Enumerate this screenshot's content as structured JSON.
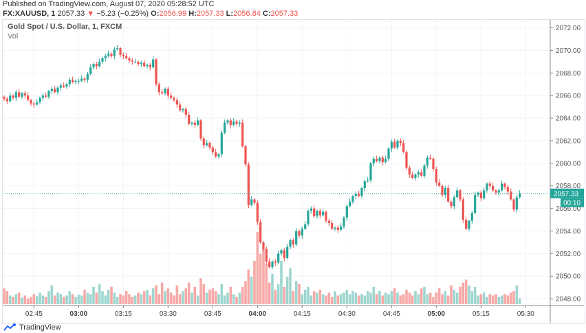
{
  "header": {
    "published": "Published on TradingView.com, August 07, 2020 05:28:52 UTC",
    "symbol": "FX:XAUUSD, 1",
    "last": "2057.33",
    "change": "−5.23 (−0.25%)",
    "o_label": "O:",
    "o": "2056.99",
    "h_label": "H:",
    "h": "2057.33",
    "l_label": "L:",
    "l": "2056.84",
    "c_label": "C:",
    "c": "2057.33",
    "direction_icon": "triangle-down-icon"
  },
  "pane": {
    "title": "Gold Spot / U.S. Dollar, 1, FXCM",
    "volume_label": "Vol"
  },
  "footer": {
    "brand": "TradingView",
    "logo_icon": "tradingview-logo-icon"
  },
  "colors": {
    "up": "#26a69a",
    "down": "#ef5350",
    "up_volume": "#9fd6d0",
    "down_volume": "#f6a9a7",
    "grid": "#f0f3fa"
  },
  "chart_data": {
    "type": "candlestick",
    "interval": "1 minute",
    "start_time": "02:35",
    "end_time": "05:28",
    "ylim": [
      2047.4,
      2072.7
    ],
    "y_ticks": [
      "2048.00",
      "2050.00",
      "2052.00",
      "2054.00",
      "2056.00",
      "2058.00",
      "2060.00",
      "2062.00",
      "2064.00",
      "2066.00",
      "2068.00",
      "2070.00",
      "2072.00"
    ],
    "x_ticks": [
      "02:45",
      "03:00",
      "03:15",
      "03:30",
      "03:45",
      "04:00",
      "04:15",
      "04:30",
      "04:45",
      "05:00",
      "05:15",
      "05:30"
    ],
    "x_ticks_bold": [
      "03:00",
      "04:00",
      "05:00"
    ],
    "last_price_label": "2057.33",
    "countdown_label": "00:10",
    "first_open": 2065.9,
    "closes": [
      2065.7,
      2065.5,
      2066.0,
      2065.8,
      2066.3,
      2065.9,
      2066.2,
      2066.0,
      2065.6,
      2065.3,
      2065.2,
      2065.4,
      2065.8,
      2066.0,
      2065.9,
      2066.4,
      2066.6,
      2066.3,
      2066.7,
      2066.9,
      2066.8,
      2067.0,
      2067.4,
      2067.2,
      2067.3,
      2067.3,
      2067.5,
      2067.4,
      2067.9,
      2068.5,
      2068.8,
      2068.6,
      2069.0,
      2069.3,
      2069.5,
      2069.7,
      2069.5,
      2070.1,
      2070.2,
      2069.6,
      2069.5,
      2069.3,
      2069.1,
      2069.0,
      2069.0,
      2068.8,
      2068.9,
      2068.6,
      2068.7,
      2068.5,
      2069.2,
      2067.0,
      2066.3,
      2066.2,
      2066.6,
      2066.0,
      2065.8,
      2065.6,
      2065.2,
      2064.7,
      2064.8,
      2064.3,
      2063.5,
      2063.6,
      2063.4,
      2063.8,
      2062.2,
      2061.6,
      2061.8,
      2061.4,
      2061.0,
      2060.6,
      2060.8,
      2062.7,
      2063.6,
      2063.8,
      2063.4,
      2063.7,
      2063.5,
      2063.6,
      2061.5,
      2059.9,
      2056.3,
      2056.8,
      2056.5,
      2054.8,
      2053.0,
      2052.4,
      2051.3,
      2050.8,
      2051.3,
      2051.2,
      2052.0,
      2052.3,
      2051.6,
      2052.6,
      2053.2,
      2052.8,
      2054.0,
      2053.6,
      2054.2,
      2054.6,
      2055.8,
      2056.0,
      2055.3,
      2055.8,
      2055.4,
      2055.7,
      2054.9,
      2054.7,
      2054.2,
      2054.3,
      2054.1,
      2054.4,
      2055.2,
      2056.2,
      2056.6,
      2057.1,
      2057.3,
      2057.1,
      2057.8,
      2058.4,
      2058.5,
      2060.0,
      2060.4,
      2060.2,
      2060.5,
      2060.1,
      2060.4,
      2061.3,
      2061.9,
      2061.4,
      2062.0,
      2061.8,
      2061.0,
      2059.6,
      2059.0,
      2058.7,
      2059.0,
      2059.2,
      2058.9,
      2059.8,
      2060.5,
      2060.4,
      2059.5,
      2058.3,
      2058.0,
      2057.2,
      2057.8,
      2056.6,
      2056.2,
      2057.0,
      2057.6,
      2056.8,
      2055.0,
      2054.2,
      2054.9,
      2055.6,
      2057.2,
      2057.4,
      2056.9,
      2057.6,
      2058.2,
      2058.0,
      2057.6,
      2057.4,
      2057.6,
      2058.2,
      2057.9,
      2057.5,
      2056.8,
      2055.9,
      2056.99,
      2057.33
    ],
    "volumes": [
      22,
      18,
      12,
      10,
      14,
      16,
      9,
      12,
      8,
      10,
      14,
      11,
      16,
      12,
      10,
      18,
      26,
      12,
      16,
      14,
      10,
      12,
      18,
      14,
      10,
      13,
      12,
      20,
      16,
      14,
      24,
      16,
      28,
      18,
      12,
      20,
      24,
      16,
      10,
      14,
      12,
      18,
      14,
      10,
      12,
      16,
      14,
      18,
      20,
      12,
      22,
      26,
      14,
      30,
      18,
      22,
      16,
      12,
      26,
      14,
      18,
      22,
      30,
      16,
      24,
      12,
      36,
      28,
      16,
      20,
      22,
      18,
      14,
      28,
      12,
      16,
      24,
      14,
      10,
      16,
      24,
      32,
      48,
      38,
      60,
      100,
      70,
      78,
      56,
      30,
      42,
      20,
      28,
      60,
      24,
      38,
      50,
      18,
      32,
      28,
      14,
      20,
      24,
      12,
      18,
      16,
      20,
      14,
      12,
      16,
      10,
      18,
      12,
      14,
      16,
      20,
      14,
      18,
      16,
      12,
      14,
      12,
      18,
      16,
      24,
      14,
      18,
      12,
      16,
      14,
      18,
      22,
      16,
      12,
      14,
      20,
      16,
      12,
      18,
      14,
      22,
      24,
      14,
      16,
      10,
      16,
      22,
      14,
      18,
      12,
      26,
      20,
      16,
      24,
      30,
      34,
      26,
      18,
      24,
      12,
      14,
      16,
      10,
      14,
      12,
      14,
      10,
      12,
      14,
      12,
      16,
      18,
      26,
      8
    ]
  }
}
